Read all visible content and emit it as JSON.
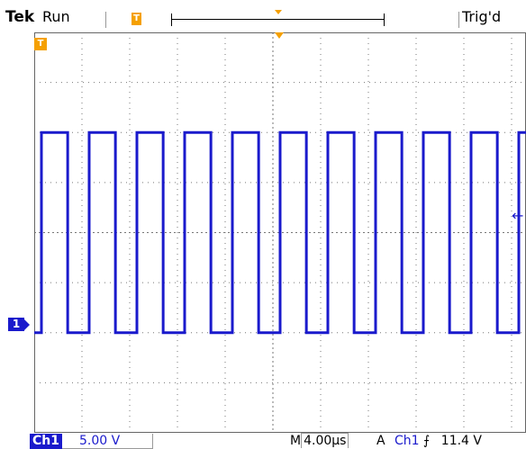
{
  "header": {
    "brand": "Tek",
    "status": "Run",
    "trigger_status": "Trig'd",
    "trigger_pos_label": "T"
  },
  "screen": {
    "channel_marker": "1",
    "trigger_marker": "T",
    "trigger_level_arrow": "←",
    "divisions": {
      "x": 10,
      "y": 8
    },
    "signal": {
      "type": "square-wave",
      "color": "#1a1acc",
      "cycles_visible": 10,
      "high_level_div": 2,
      "low_level_div": -2
    }
  },
  "footer": {
    "channel": "Ch1",
    "volts_per_div": "5.00 V",
    "time_prefix": "M",
    "time_per_div": "4.00µs",
    "trigger_mode": "A",
    "trigger_source": "Ch1",
    "trigger_slope": "⨍",
    "trigger_level": "11.4 V"
  },
  "colors": {
    "trace": "#1a1acc",
    "accent": "#f5a000",
    "grid": "#777777"
  }
}
